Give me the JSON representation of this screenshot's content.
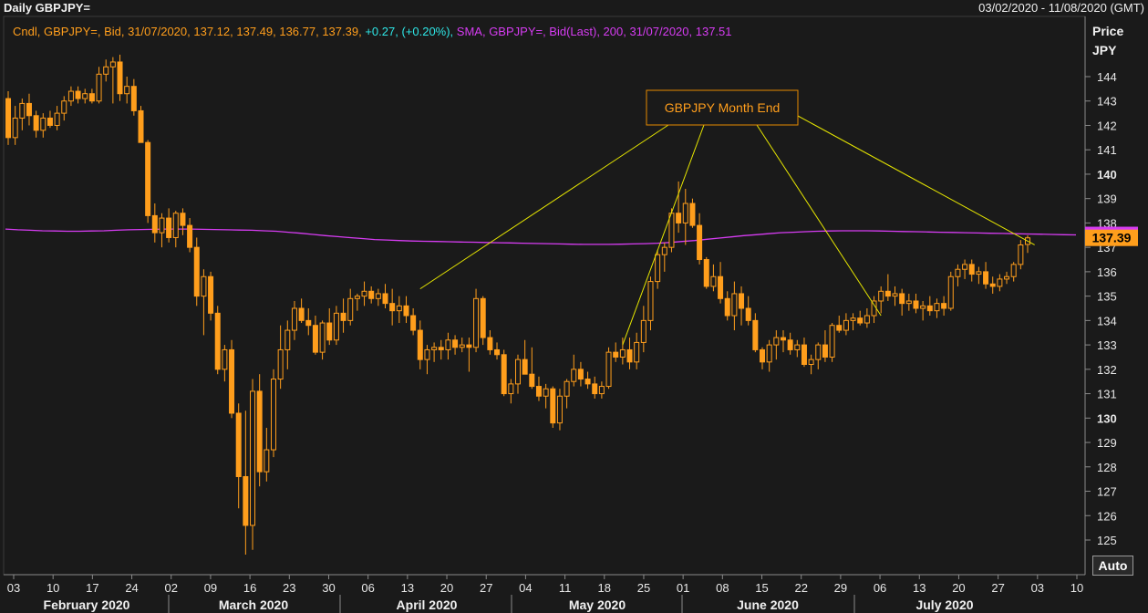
{
  "header": {
    "title": "Daily GBPJPY=",
    "date_range": "03/02/2020 - 11/08/2020 (GMT)"
  },
  "legend": {
    "cndl_text": "Cndl, GBPJPY=, Bid, 31/07/2020, 137.12, 137.49, 136.77, 137.39,",
    "change_text": "+0.27, (+0.20%),",
    "sma_text": "SMA, GBPJPY=, Bid(Last),  200, 31/07/2020, 137.51"
  },
  "price_axis": {
    "title": "Price",
    "unit": "JPY"
  },
  "auto_button": "Auto",
  "annotation": {
    "label": "GBPJPY Month End"
  },
  "colors": {
    "background": "#1a1a1a",
    "candle": "#ff9e1c",
    "sma": "#d63cf2",
    "annotation_line": "#e6e600",
    "change": "#2ee6e6"
  },
  "chart_data": {
    "type": "candlestick",
    "title": "Daily GBPJPY=",
    "ylabel": "Price JPY",
    "ylim": [
      124.2,
      145.0
    ],
    "y_ticks": [
      125,
      126,
      127,
      128,
      129,
      130,
      131,
      132,
      133,
      134,
      135,
      136,
      137,
      138,
      139,
      140,
      141,
      142,
      143,
      144
    ],
    "y_bold_ticks": [
      130,
      140
    ],
    "x_tick_labels": [
      "03",
      "10",
      "17",
      "24",
      "02",
      "09",
      "16",
      "23",
      "30",
      "06",
      "13",
      "20",
      "27",
      "04",
      "11",
      "18",
      "25",
      "01",
      "08",
      "15",
      "22",
      "29",
      "06",
      "13",
      "20",
      "27",
      "03",
      "10"
    ],
    "months": [
      "February 2020",
      "March 2020",
      "April 2020",
      "May 2020",
      "June 2020",
      "July 2020"
    ],
    "last_price": 137.39,
    "sma_last": 137.51,
    "series": [
      {
        "name": "GBPJPY=",
        "type": "candlestick",
        "ohlc": [
          [
            143.1,
            143.4,
            141.2,
            141.5
          ],
          [
            141.5,
            142.8,
            141.2,
            142.3
          ],
          [
            142.3,
            143.1,
            141.8,
            142.9
          ],
          [
            142.9,
            143.3,
            142.0,
            142.4
          ],
          [
            142.4,
            142.6,
            141.5,
            141.8
          ],
          [
            141.8,
            142.5,
            141.5,
            142.3
          ],
          [
            142.3,
            142.6,
            141.9,
            142.0
          ],
          [
            142.0,
            142.8,
            141.8,
            142.5
          ],
          [
            142.5,
            143.2,
            142.2,
            143.0
          ],
          [
            143.0,
            143.6,
            142.8,
            143.4
          ],
          [
            143.4,
            143.6,
            142.9,
            143.1
          ],
          [
            143.1,
            143.5,
            142.9,
            143.3
          ],
          [
            143.3,
            143.5,
            142.9,
            143.0
          ],
          [
            143.0,
            144.4,
            142.9,
            144.1
          ],
          [
            144.1,
            144.7,
            143.8,
            144.4
          ],
          [
            144.4,
            144.8,
            142.9,
            144.6
          ],
          [
            144.6,
            144.9,
            143.0,
            143.3
          ],
          [
            143.3,
            144.0,
            142.9,
            143.6
          ],
          [
            143.6,
            143.9,
            142.4,
            142.6
          ],
          [
            142.6,
            142.8,
            141.3,
            141.3
          ],
          [
            141.3,
            141.4,
            138.0,
            138.3
          ],
          [
            138.3,
            138.8,
            137.2,
            137.6
          ],
          [
            137.6,
            138.4,
            137.0,
            138.2
          ],
          [
            138.2,
            138.6,
            137.2,
            137.4
          ],
          [
            137.4,
            138.5,
            137.0,
            138.4
          ],
          [
            138.4,
            138.6,
            137.5,
            137.9
          ],
          [
            137.9,
            138.2,
            136.8,
            137.0
          ],
          [
            137.0,
            137.4,
            134.6,
            135.0
          ],
          [
            135.0,
            136.1,
            133.4,
            135.8
          ],
          [
            135.8,
            136.0,
            134.0,
            134.3
          ],
          [
            134.3,
            134.6,
            131.8,
            132.0
          ],
          [
            132.0,
            133.0,
            131.5,
            132.8
          ],
          [
            132.8,
            133.2,
            130.0,
            130.2
          ],
          [
            130.2,
            130.6,
            126.3,
            127.6
          ],
          [
            127.6,
            130.3,
            124.4,
            125.6
          ],
          [
            125.6,
            131.6,
            124.6,
            131.1
          ],
          [
            131.1,
            131.8,
            127.2,
            127.8
          ],
          [
            127.8,
            129.6,
            127.4,
            128.7
          ],
          [
            128.7,
            132.0,
            128.4,
            131.6
          ],
          [
            131.6,
            133.8,
            131.2,
            132.8
          ],
          [
            132.8,
            134.0,
            132.0,
            133.6
          ],
          [
            133.6,
            134.8,
            133.2,
            134.5
          ],
          [
            134.5,
            134.9,
            133.9,
            134.0
          ],
          [
            134.0,
            134.5,
            133.4,
            133.8
          ],
          [
            133.8,
            134.2,
            132.6,
            132.7
          ],
          [
            132.7,
            134.0,
            132.4,
            133.9
          ],
          [
            133.9,
            134.5,
            133.0,
            133.2
          ],
          [
            133.2,
            134.6,
            133.0,
            134.3
          ],
          [
            134.3,
            134.9,
            133.5,
            134.0
          ],
          [
            134.0,
            135.3,
            133.8,
            134.9
          ],
          [
            134.9,
            135.1,
            134.4,
            135.0
          ],
          [
            135.0,
            135.6,
            134.6,
            135.2
          ],
          [
            135.2,
            135.4,
            134.7,
            134.9
          ],
          [
            134.9,
            135.3,
            134.6,
            135.1
          ],
          [
            135.1,
            135.5,
            134.5,
            134.7
          ],
          [
            134.7,
            135.3,
            133.8,
            134.4
          ],
          [
            134.4,
            135.0,
            133.9,
            134.6
          ],
          [
            134.6,
            135.0,
            133.9,
            134.2
          ],
          [
            134.2,
            134.5,
            133.4,
            133.6
          ],
          [
            133.6,
            134.0,
            132.0,
            132.4
          ],
          [
            132.4,
            133.0,
            131.8,
            132.8
          ],
          [
            132.8,
            133.1,
            132.3,
            132.9
          ],
          [
            132.9,
            133.2,
            132.4,
            132.8
          ],
          [
            132.8,
            133.5,
            132.4,
            133.2
          ],
          [
            133.2,
            133.4,
            132.6,
            132.9
          ],
          [
            132.9,
            133.3,
            132.7,
            133.0
          ],
          [
            133.0,
            133.3,
            131.9,
            132.9
          ],
          [
            132.9,
            135.3,
            132.7,
            134.9
          ],
          [
            134.9,
            135.0,
            133.0,
            133.3
          ],
          [
            133.3,
            133.6,
            132.6,
            132.8
          ],
          [
            132.8,
            133.1,
            132.4,
            132.6
          ],
          [
            132.6,
            132.8,
            130.9,
            131.0
          ],
          [
            131.0,
            131.6,
            130.6,
            131.4
          ],
          [
            131.4,
            132.6,
            131.0,
            132.4
          ],
          [
            132.4,
            133.2,
            131.8,
            131.8
          ],
          [
            131.8,
            132.9,
            131.2,
            131.3
          ],
          [
            131.3,
            131.7,
            130.7,
            130.9
          ],
          [
            130.9,
            131.4,
            130.4,
            131.2
          ],
          [
            131.2,
            131.3,
            129.6,
            129.8
          ],
          [
            129.8,
            131.2,
            129.5,
            130.9
          ],
          [
            130.9,
            131.6,
            130.4,
            131.5
          ],
          [
            131.5,
            132.6,
            131.3,
            132.0
          ],
          [
            132.0,
            132.3,
            131.3,
            131.6
          ],
          [
            131.6,
            131.9,
            131.2,
            131.4
          ],
          [
            131.4,
            131.7,
            130.8,
            131.0
          ],
          [
            131.0,
            131.5,
            130.8,
            131.3
          ],
          [
            131.3,
            132.9,
            131.2,
            132.7
          ],
          [
            132.7,
            133.1,
            132.3,
            132.5
          ],
          [
            132.5,
            133.3,
            132.2,
            132.8
          ],
          [
            132.8,
            133.3,
            132.0,
            132.3
          ],
          [
            132.3,
            133.5,
            132.0,
            133.1
          ],
          [
            133.1,
            134.6,
            132.7,
            134.0
          ],
          [
            134.0,
            135.8,
            133.6,
            135.6
          ],
          [
            135.6,
            136.9,
            135.3,
            136.7
          ],
          [
            136.7,
            137.2,
            136.0,
            137.0
          ],
          [
            137.0,
            138.6,
            136.8,
            138.4
          ],
          [
            138.4,
            139.7,
            137.6,
            138.0
          ],
          [
            138.0,
            139.4,
            137.1,
            138.8
          ],
          [
            138.8,
            139.0,
            137.8,
            137.9
          ],
          [
            137.9,
            138.4,
            136.3,
            136.5
          ],
          [
            136.5,
            136.6,
            135.3,
            135.4
          ],
          [
            135.4,
            136.3,
            135.2,
            135.8
          ],
          [
            135.8,
            136.4,
            134.7,
            134.9
          ],
          [
            134.9,
            135.2,
            134.0,
            134.2
          ],
          [
            134.2,
            135.6,
            133.6,
            135.1
          ],
          [
            135.1,
            135.4,
            133.8,
            134.5
          ],
          [
            134.5,
            135.0,
            133.8,
            134.0
          ],
          [
            134.0,
            134.3,
            132.7,
            132.8
          ],
          [
            132.8,
            132.9,
            132.0,
            132.3
          ],
          [
            132.3,
            133.2,
            131.9,
            133.0
          ],
          [
            133.0,
            133.6,
            132.4,
            133.3
          ],
          [
            133.3,
            133.6,
            132.7,
            133.2
          ],
          [
            133.2,
            133.5,
            132.6,
            132.8
          ],
          [
            132.8,
            133.2,
            132.5,
            133.0
          ],
          [
            133.0,
            133.3,
            132.1,
            132.2
          ],
          [
            132.2,
            132.6,
            131.8,
            132.4
          ],
          [
            132.4,
            133.1,
            132.0,
            133.0
          ],
          [
            133.0,
            133.6,
            132.3,
            132.5
          ],
          [
            132.5,
            133.9,
            132.3,
            133.8
          ],
          [
            133.8,
            134.2,
            133.5,
            133.6
          ],
          [
            133.6,
            134.3,
            133.4,
            134.0
          ],
          [
            134.0,
            134.3,
            133.6,
            134.1
          ],
          [
            134.1,
            134.4,
            133.8,
            133.9
          ],
          [
            133.9,
            134.5,
            133.7,
            134.2
          ],
          [
            134.2,
            135.0,
            133.9,
            134.8
          ],
          [
            134.8,
            135.4,
            134.3,
            135.2
          ],
          [
            135.2,
            135.9,
            134.8,
            135.0
          ],
          [
            135.0,
            135.4,
            134.6,
            135.1
          ],
          [
            135.1,
            135.3,
            134.2,
            134.7
          ],
          [
            134.7,
            135.1,
            134.4,
            134.8
          ],
          [
            134.8,
            135.1,
            134.3,
            134.5
          ],
          [
            134.5,
            134.8,
            134.0,
            134.6
          ],
          [
            134.6,
            135.0,
            134.2,
            134.4
          ],
          [
            134.4,
            134.9,
            134.1,
            134.7
          ],
          [
            134.7,
            135.0,
            134.2,
            134.5
          ],
          [
            134.5,
            136.0,
            134.4,
            135.8
          ],
          [
            135.8,
            136.3,
            135.4,
            136.1
          ],
          [
            136.1,
            136.5,
            135.7,
            136.3
          ],
          [
            136.3,
            136.5,
            135.6,
            135.9
          ],
          [
            135.9,
            136.2,
            135.5,
            136.0
          ],
          [
            136.0,
            136.4,
            135.3,
            135.5
          ],
          [
            135.5,
            135.8,
            135.1,
            135.4
          ],
          [
            135.4,
            135.9,
            135.2,
            135.7
          ],
          [
            135.7,
            136.0,
            135.5,
            135.8
          ],
          [
            135.8,
            136.4,
            135.6,
            136.3
          ],
          [
            136.3,
            137.3,
            136.1,
            137.1
          ],
          [
            137.12,
            137.49,
            136.77,
            137.39
          ]
        ]
      },
      {
        "name": "SMA 200",
        "type": "line",
        "values": [
          137.75,
          137.72,
          137.7,
          137.68,
          137.67,
          137.66,
          137.66,
          137.67,
          137.68,
          137.7,
          137.72,
          137.73,
          137.74,
          137.75,
          137.75,
          137.75,
          137.74,
          137.73,
          137.72,
          137.71,
          137.7,
          137.68,
          137.66,
          137.62,
          137.58,
          137.53,
          137.48,
          137.44,
          137.4,
          137.36,
          137.32,
          137.3,
          137.28,
          137.26,
          137.25,
          137.24,
          137.23,
          137.22,
          137.21,
          137.2,
          137.19,
          137.18,
          137.17,
          137.16,
          137.15,
          137.14,
          137.13,
          137.12,
          137.12,
          137.12,
          137.13,
          137.14,
          137.15,
          137.17,
          137.2,
          137.24,
          137.28,
          137.33,
          137.38,
          137.43,
          137.48,
          137.52,
          137.56,
          137.6,
          137.62,
          137.64,
          137.66,
          137.67,
          137.68,
          137.68,
          137.68,
          137.67,
          137.66,
          137.65,
          137.64,
          137.63,
          137.62,
          137.61,
          137.6,
          137.59,
          137.58,
          137.57,
          137.56,
          137.55,
          137.54,
          137.53,
          137.52,
          137.51
        ]
      }
    ],
    "annotations": [
      {
        "text": "GBPJPY Month End",
        "targets": [
          {
            "date_index": 59,
            "price": 135.3
          },
          {
            "date_index": 88,
            "price": 133.0
          },
          {
            "date_index": 125,
            "price": 134.2
          },
          {
            "date_index": 147,
            "price": 137.1
          }
        ]
      }
    ]
  }
}
